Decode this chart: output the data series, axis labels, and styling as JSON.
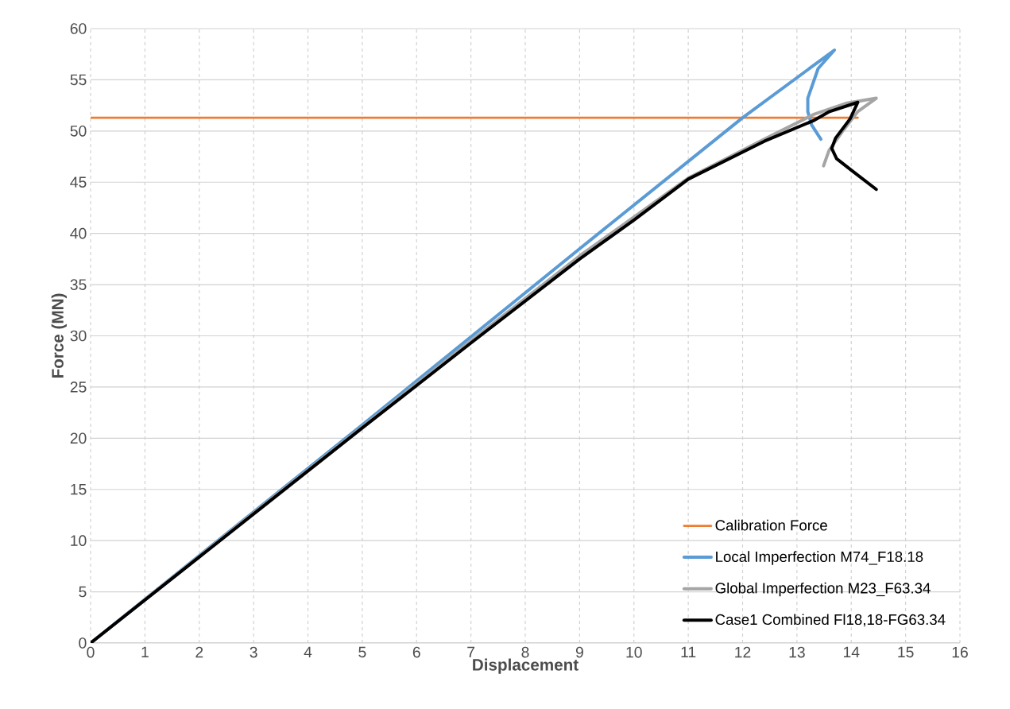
{
  "chart_data": {
    "type": "line",
    "xlabel": "Displacement",
    "ylabel": "Force (MN)",
    "xlim": [
      0,
      16
    ],
    "ylim": [
      0,
      60
    ],
    "xticks": [
      0,
      1,
      2,
      3,
      4,
      5,
      6,
      7,
      8,
      9,
      10,
      11,
      12,
      13,
      14,
      15,
      16
    ],
    "yticks": [
      0,
      5,
      10,
      15,
      20,
      25,
      30,
      35,
      40,
      45,
      50,
      55,
      60
    ],
    "grid": true,
    "legend": "bottom right",
    "series": [
      {
        "name": "Calibration Force",
        "color": "#ed7d31",
        "x": [
          0,
          14.12
        ],
        "values": [
          51.3,
          51.3
        ]
      },
      {
        "name": "Local Imperfection M74_F18.18",
        "color": "#5b9bd5",
        "x": [
          0,
          3,
          5,
          7,
          9,
          12,
          13.69,
          13.39,
          13.2,
          13.2,
          13.27,
          13.44
        ],
        "values": [
          0,
          12.8,
          21.3,
          29.9,
          38.5,
          51.3,
          57.9,
          56.1,
          53.2,
          51.9,
          50.6,
          49.2
        ]
      },
      {
        "name": "Global Imperfection M23_F63.34",
        "color": "#a5a5a5",
        "x": [
          0,
          3,
          5,
          7,
          9,
          11,
          12.4,
          13.3,
          13.9,
          14.46,
          14.12,
          13.83,
          13.59,
          13.49
        ],
        "values": [
          0,
          12.7,
          21.1,
          29.5,
          37.8,
          45.4,
          49.2,
          51.6,
          52.7,
          53.2,
          51.9,
          49.9,
          48.1,
          46.6
        ]
      },
      {
        "name": "Case1 Combined Fl18,18-FG63.34",
        "color": "#000000",
        "x": [
          0,
          3,
          5,
          7,
          9,
          10,
          11,
          12.4,
          13.3,
          13.6,
          14.12,
          13.98,
          13.71,
          13.64,
          13.73,
          14.02,
          14.46
        ],
        "values": [
          0,
          12.6,
          21.0,
          29.3,
          37.5,
          41.3,
          45.3,
          49.0,
          51.0,
          51.9,
          52.8,
          51.2,
          49.3,
          48.3,
          47.3,
          46.1,
          44.3
        ]
      }
    ]
  }
}
